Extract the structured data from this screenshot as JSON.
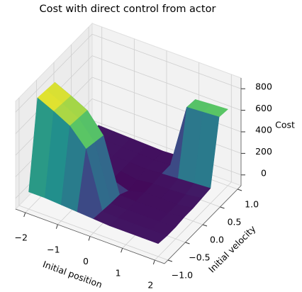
{
  "chart_data": {
    "type": "surface",
    "title": "Cost with direct control from actor",
    "xlabel": "Initial position",
    "ylabel": "Initial velocity",
    "zlabel": "Cost",
    "colormap": "viridis",
    "x": [
      -2,
      -1.5,
      -1,
      -0.5,
      0,
      0.5,
      1,
      1.5,
      2
    ],
    "y": [
      -1,
      -0.75,
      -0.5,
      -0.25,
      0,
      0.25,
      0.5,
      0.75,
      1
    ],
    "z": [
      [
        60,
        60,
        50,
        40,
        30,
        20,
        20,
        20,
        20
      ],
      [
        850,
        780,
        700,
        540,
        20,
        10,
        10,
        10,
        10
      ],
      [
        840,
        770,
        690,
        520,
        10,
        5,
        5,
        5,
        10
      ],
      [
        830,
        760,
        680,
        500,
        5,
        0,
        0,
        0,
        20
      ],
      [
        20,
        20,
        15,
        10,
        -40,
        0,
        0,
        0,
        20
      ],
      [
        20,
        15,
        10,
        5,
        -20,
        0,
        0,
        10,
        30
      ],
      [
        20,
        15,
        10,
        5,
        0,
        10,
        20,
        30,
        40
      ],
      [
        20,
        15,
        10,
        5,
        0,
        10,
        600,
        610,
        620
      ],
      [
        20,
        15,
        10,
        5,
        0,
        10,
        590,
        600,
        610
      ]
    ],
    "xlim": [
      -2.3,
      2.3
    ],
    "ylim": [
      -1.1,
      1.1
    ],
    "zlim": [
      -100,
      900
    ],
    "xticks": [
      {
        "value": -2,
        "label": "−2"
      },
      {
        "value": -1,
        "label": "−1"
      },
      0,
      1,
      2
    ],
    "yticks": [
      {
        "value": -1,
        "label": "−1.0"
      },
      {
        "value": -0.5,
        "label": "−0.5"
      },
      {
        "value": 0,
        "label": "0.0"
      },
      0.5,
      {
        "value": 1,
        "label": "1.0"
      }
    ],
    "zticks": [
      0,
      200,
      400,
      600,
      800
    ],
    "grid": true
  }
}
